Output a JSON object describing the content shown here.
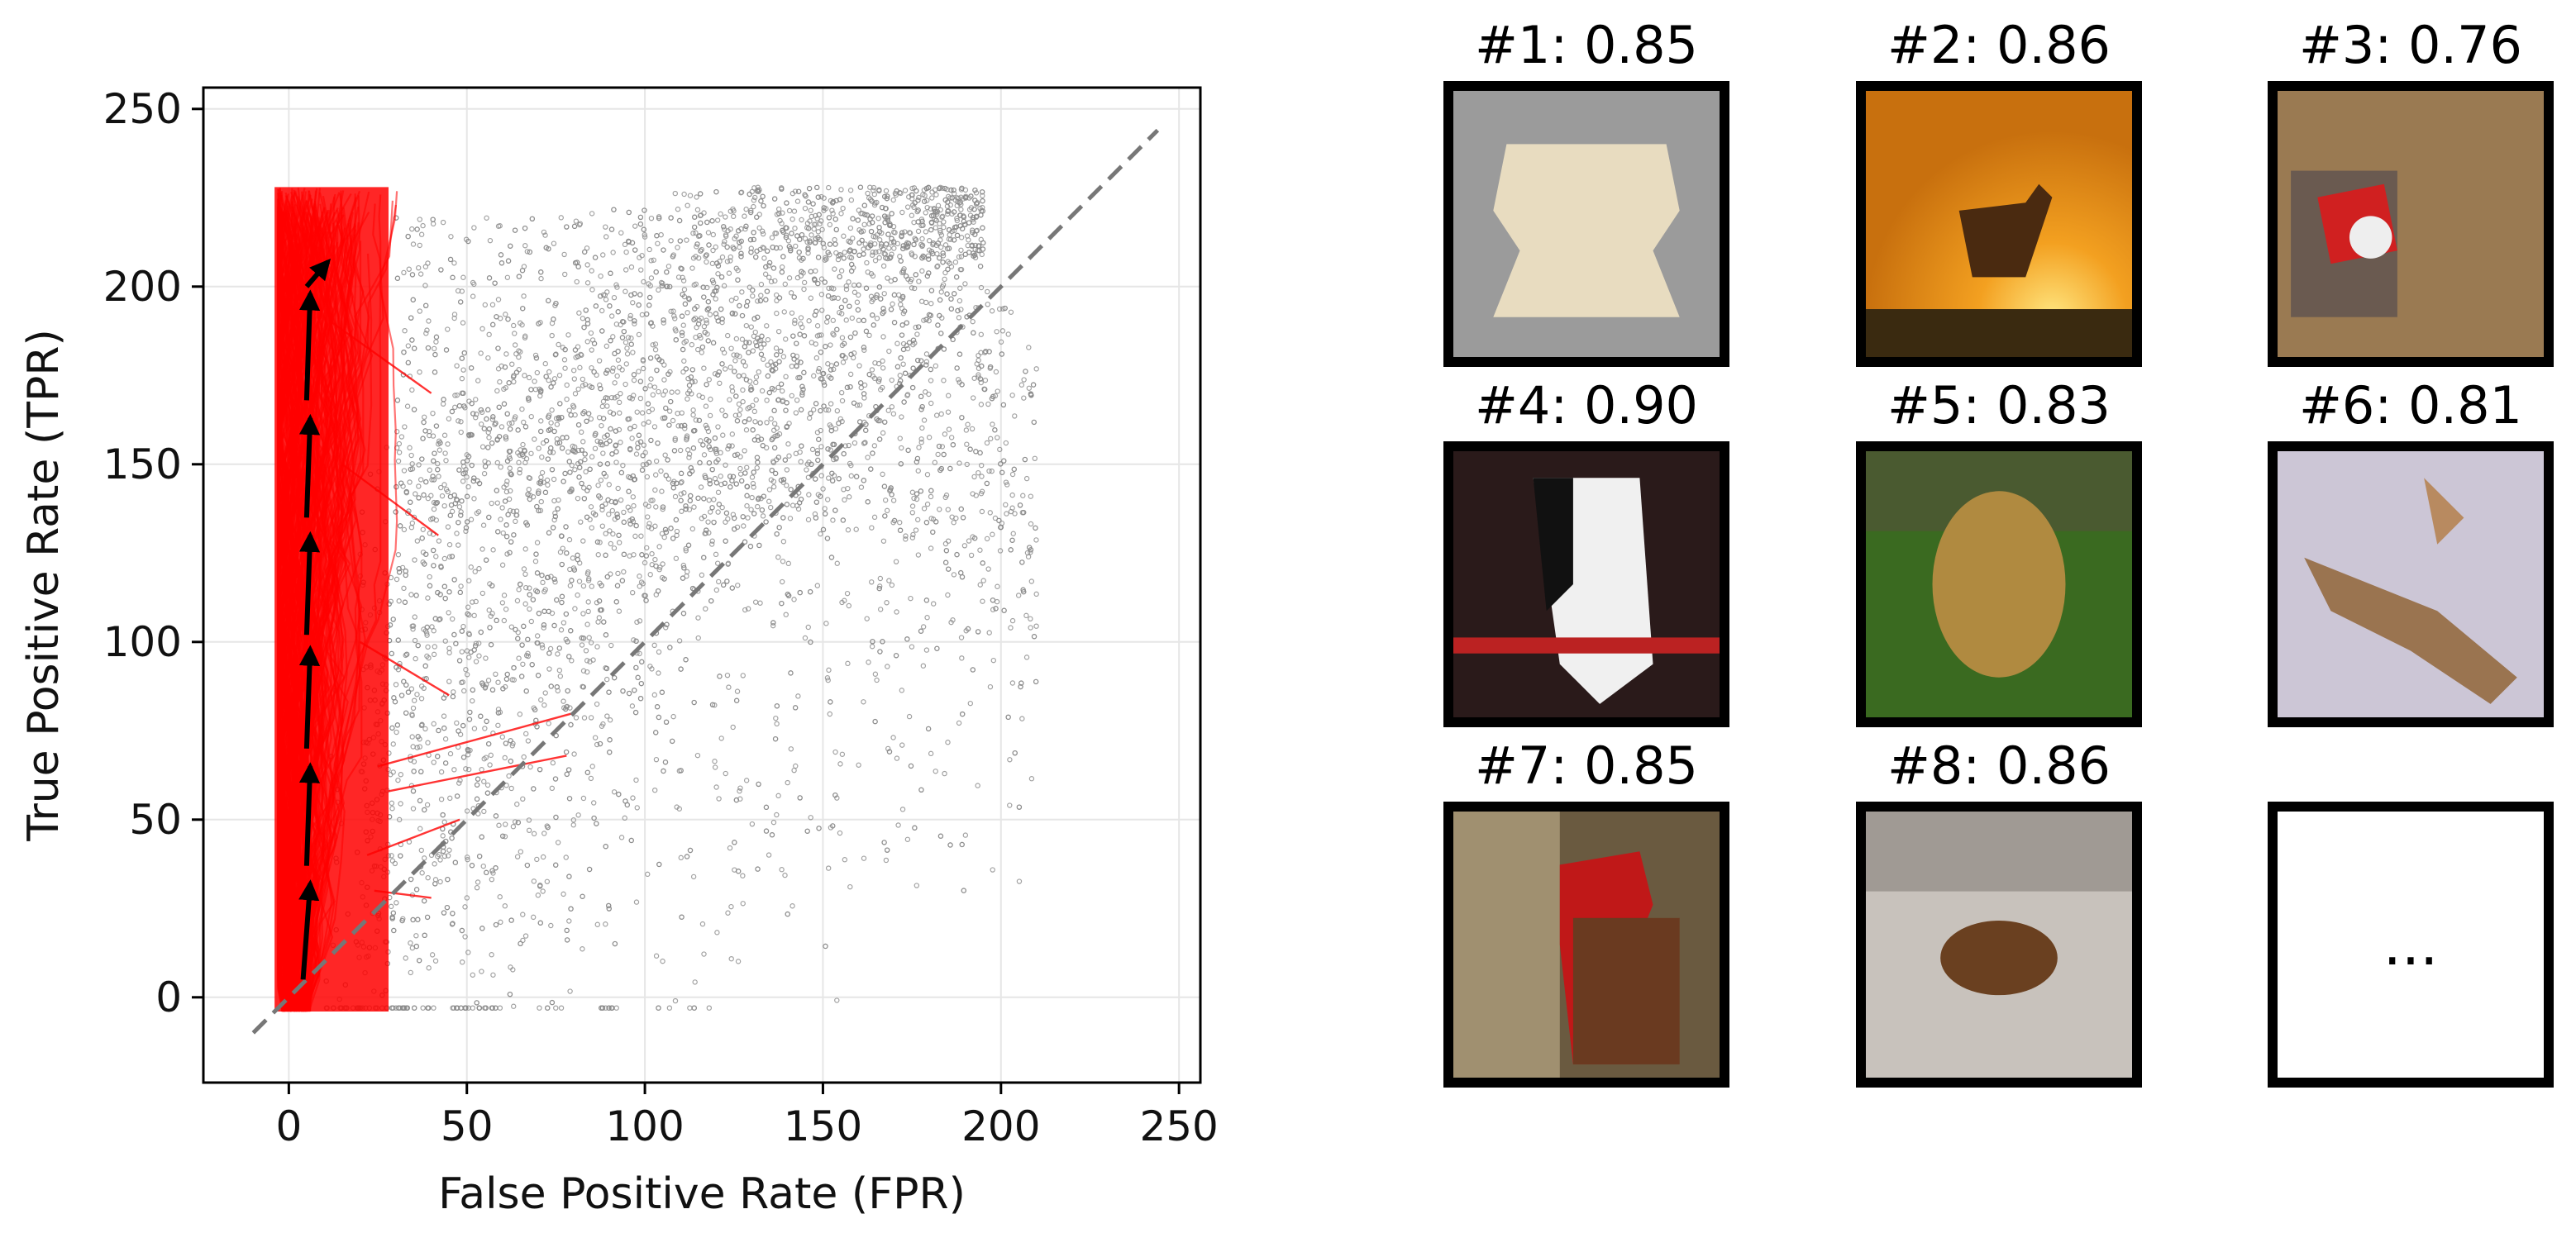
{
  "chart_data": {
    "type": "scatter",
    "title": "",
    "xlabel": "False Positive Rate (FPR)",
    "ylabel": "True Positive Rate (TPR)",
    "xlim": [
      -24,
      256
    ],
    "ylim": [
      -24,
      256
    ],
    "xticks": [
      0,
      50,
      100,
      150,
      200,
      250
    ],
    "yticks": [
      0,
      50,
      100,
      150,
      200,
      250
    ],
    "xtick_labels": [
      "0",
      "50",
      "100",
      "150",
      "200",
      "250"
    ],
    "ytick_labels": [
      "0",
      "50",
      "100",
      "150",
      "200",
      "250"
    ],
    "grid": true,
    "legend": "none",
    "colors": {
      "background_points": "#8a8a8a",
      "trajectories": "#ff0000",
      "diagonal": "#777777",
      "arrows": "#000000"
    },
    "diagonal": {
      "from": [
        -10,
        -10
      ],
      "to": [
        244,
        244
      ],
      "style": "dashed"
    },
    "background_scatter": {
      "description_of_region": "dense grey cloud of points",
      "x_range": [
        0,
        225
      ],
      "y_range": [
        -5,
        230
      ]
    },
    "trajectory_band": {
      "x_range": [
        -4,
        40
      ],
      "y_range": [
        -5,
        230
      ]
    },
    "arrows": [
      {
        "x": [
          4,
          6
        ],
        "y": [
          5,
          32
        ]
      },
      {
        "x": [
          5,
          6
        ],
        "y": [
          37,
          65
        ]
      },
      {
        "x": [
          5,
          6
        ],
        "y": [
          70,
          98
        ]
      },
      {
        "x": [
          5,
          6
        ],
        "y": [
          102,
          130
        ]
      },
      {
        "x": [
          5,
          6
        ],
        "y": [
          135,
          163
        ]
      },
      {
        "x": [
          5,
          6
        ],
        "y": [
          168,
          198
        ]
      },
      {
        "x": [
          5,
          11
        ],
        "y": [
          200,
          207
        ]
      }
    ]
  },
  "thumbnails": [
    {
      "title": "#1: 0.85",
      "icon": "frog-image"
    },
    {
      "title": "#2: 0.86",
      "icon": "horse-sunset-image"
    },
    {
      "title": "#3: 0.76",
      "icon": "animal-image"
    },
    {
      "title": "#4: 0.90",
      "icon": "horse-closeup-image"
    },
    {
      "title": "#5: 0.83",
      "icon": "dog-grass-image"
    },
    {
      "title": "#6: 0.81",
      "icon": "cat-leaping-image"
    },
    {
      "title": "#7: 0.85",
      "icon": "rooster-image"
    },
    {
      "title": "#8: 0.86",
      "icon": "deer-snow-image"
    }
  ],
  "ellipsis_tile": {
    "text": "..."
  }
}
